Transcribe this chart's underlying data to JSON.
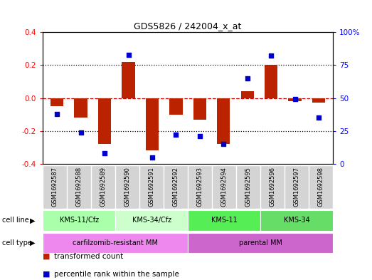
{
  "title": "GDS5826 / 242004_x_at",
  "samples": [
    "GSM1692587",
    "GSM1692588",
    "GSM1692589",
    "GSM1692590",
    "GSM1692591",
    "GSM1692592",
    "GSM1692593",
    "GSM1692594",
    "GSM1692595",
    "GSM1692596",
    "GSM1692597",
    "GSM1692598"
  ],
  "transformed_count": [
    -0.05,
    -0.12,
    -0.28,
    0.22,
    -0.32,
    -0.1,
    -0.13,
    -0.28,
    0.04,
    0.2,
    -0.02,
    -0.03
  ],
  "percentile_rank": [
    38,
    24,
    8,
    83,
    5,
    22,
    21,
    15,
    65,
    82,
    49,
    35
  ],
  "cell_line_groups": [
    {
      "label": "KMS-11/Cfz",
      "start": 0,
      "end": 3,
      "color": "#aaffaa"
    },
    {
      "label": "KMS-34/Cfz",
      "start": 3,
      "end": 6,
      "color": "#ccffcc"
    },
    {
      "label": "KMS-11",
      "start": 6,
      "end": 9,
      "color": "#55ee55"
    },
    {
      "label": "KMS-34",
      "start": 9,
      "end": 12,
      "color": "#66dd66"
    }
  ],
  "cell_type_groups": [
    {
      "label": "carfilzomib-resistant MM",
      "start": 0,
      "end": 6,
      "color": "#ee88ee"
    },
    {
      "label": "parental MM",
      "start": 6,
      "end": 12,
      "color": "#cc66cc"
    }
  ],
  "bar_color": "#bb2200",
  "scatter_color": "#0000cc",
  "ylim_left": [
    -0.4,
    0.4
  ],
  "ylim_right": [
    0,
    100
  ],
  "yticks_left": [
    -0.4,
    -0.2,
    0.0,
    0.2,
    0.4
  ],
  "yticks_right": [
    0,
    25,
    50,
    75,
    100
  ],
  "yticklabels_right": [
    "0",
    "25",
    "50",
    "75",
    "100%"
  ],
  "hline_color": "#cc0000",
  "dotted_color": "#000000",
  "background_color": "#ffffff",
  "plot_bg_color": "#ffffff",
  "sample_bg_color": "#d4d4d4",
  "legend_items": [
    {
      "label": "transformed count",
      "color": "#bb2200"
    },
    {
      "label": "percentile rank within the sample",
      "color": "#0000cc"
    }
  ],
  "cell_line_label": "cell line",
  "cell_type_label": "cell type"
}
